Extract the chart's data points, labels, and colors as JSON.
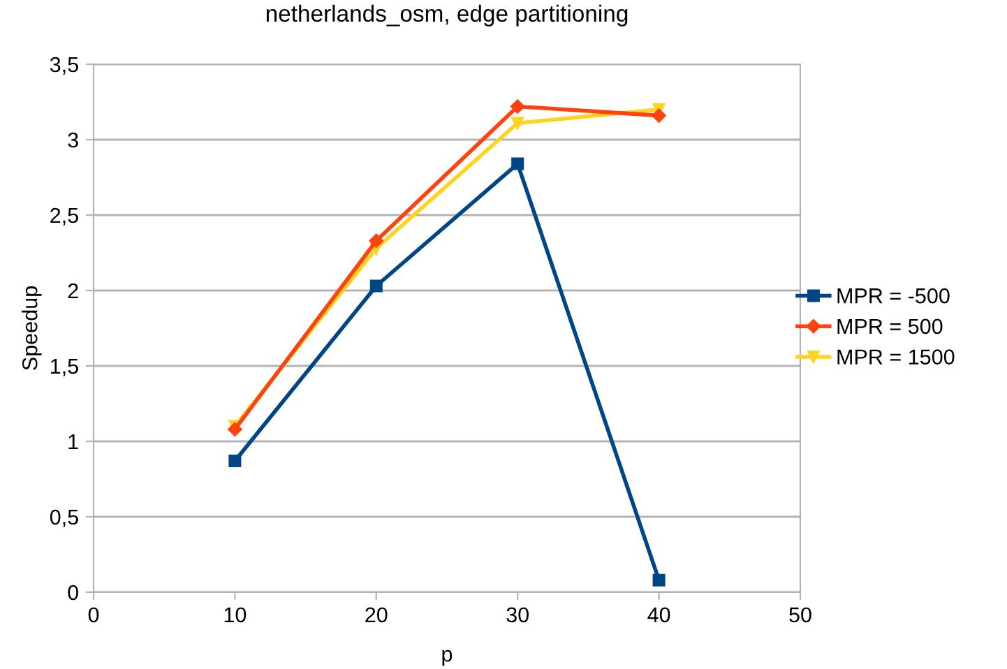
{
  "chart_data": {
    "type": "line",
    "title": "netherlands_osm, edge partitioning",
    "xlabel": "p",
    "ylabel": "Speedup",
    "x": [
      10,
      20,
      30,
      40
    ],
    "series": [
      {
        "name": "MPR = -500",
        "color": "#004586",
        "marker": "square",
        "values": [
          0.87,
          2.03,
          2.84,
          0.08
        ]
      },
      {
        "name": "MPR = 500",
        "color": "#ff420e",
        "marker": "diamond",
        "values": [
          1.08,
          2.33,
          3.22,
          3.16
        ]
      },
      {
        "name": "MPR = 1500",
        "color": "#ffd320",
        "marker": "triangle",
        "values": [
          1.1,
          2.28,
          3.11,
          3.2
        ]
      }
    ],
    "xlim": [
      0,
      50
    ],
    "xticks": [
      0,
      10,
      20,
      30,
      40,
      50
    ],
    "ylim": [
      0,
      3.5
    ],
    "yticks": [
      0,
      {
        "value": 0.5,
        "label": "0,5"
      },
      1,
      {
        "value": 1.5,
        "label": "1,5"
      },
      2,
      {
        "value": 2.5,
        "label": "2,5"
      },
      3,
      {
        "value": 3.5,
        "label": "3,5"
      }
    ],
    "grid": "y",
    "legend": "right",
    "line_style": "solid"
  }
}
